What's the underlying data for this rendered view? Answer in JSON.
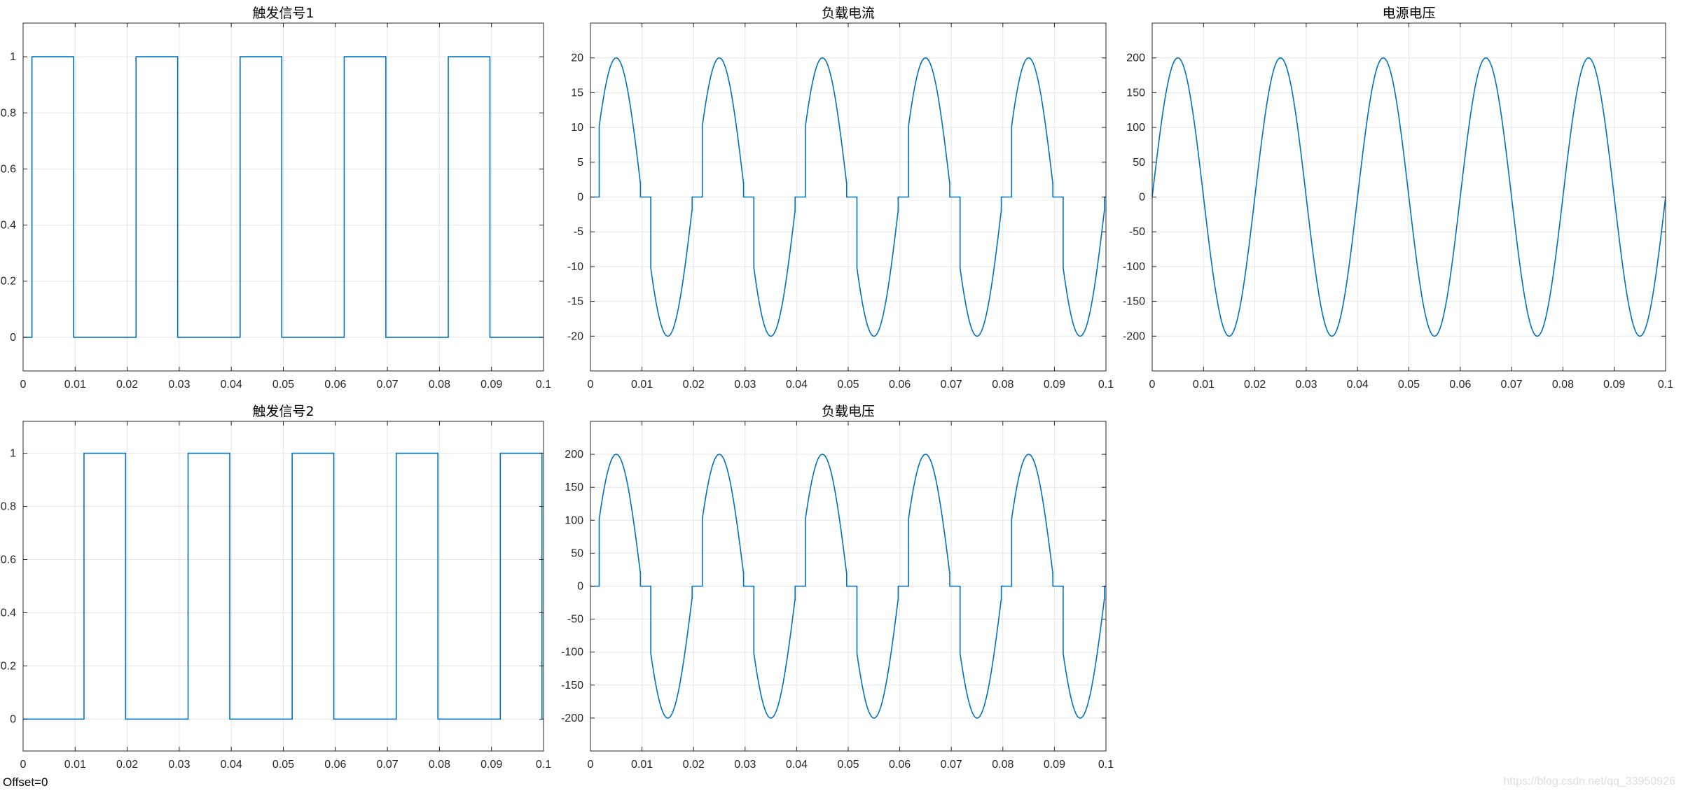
{
  "figure": {
    "offset_label": "Offset=0",
    "watermark": "https://blog.csdn.net/qq_33950926",
    "line_color": "#0072bd",
    "grid_color": "#e5e5e5",
    "grid": true
  },
  "chart_data": [
    {
      "id": "trigger1",
      "type": "line",
      "title": "触发信号1",
      "xlabel": "",
      "ylabel": "",
      "xlim": [
        0,
        0.1
      ],
      "ylim": [
        -0.12,
        1.12
      ],
      "xticks": [
        0,
        0.01,
        0.02,
        0.03,
        0.04,
        0.05,
        0.06,
        0.07,
        0.08,
        0.09,
        0.1
      ],
      "xtick_labels": [
        "0",
        "0.01",
        "0.02",
        "0.03",
        "0.04",
        "0.05",
        "0.06",
        "0.07",
        "0.08",
        "0.09",
        "0.1"
      ],
      "yticks": [
        0,
        0.2,
        0.4,
        0.6,
        0.8,
        1
      ],
      "ytick_labels": [
        "0",
        "0.2",
        "0.4",
        "0.6",
        "0.8",
        "1"
      ],
      "series": [
        {
          "kind": "pulse",
          "period": 0.02,
          "high_start": 0.0017,
          "high_end": 0.0097,
          "high": 1,
          "low": 0
        }
      ]
    },
    {
      "id": "load-current",
      "type": "line",
      "title": "负载电流",
      "xlabel": "",
      "ylabel": "",
      "xlim": [
        0,
        0.1
      ],
      "ylim": [
        -25,
        25
      ],
      "xticks": [
        0,
        0.01,
        0.02,
        0.03,
        0.04,
        0.05,
        0.06,
        0.07,
        0.08,
        0.09,
        0.1
      ],
      "xtick_labels": [
        "0",
        "0.01",
        "0.02",
        "0.03",
        "0.04",
        "0.05",
        "0.06",
        "0.07",
        "0.08",
        "0.09",
        "0.1"
      ],
      "yticks": [
        -20,
        -15,
        -10,
        -5,
        0,
        5,
        10,
        15,
        20
      ],
      "ytick_labels": [
        "-20",
        "-15",
        "-10",
        "-5",
        "0",
        "5",
        "10",
        "15",
        "20"
      ],
      "series": [
        {
          "kind": "chopped-sine",
          "amplitude": 20,
          "frequency": 50,
          "conduction_start": 0.0017,
          "conduction_end": 0.0097
        }
      ]
    },
    {
      "id": "source-voltage",
      "type": "line",
      "title": "电源电压",
      "xlabel": "",
      "ylabel": "",
      "xlim": [
        0,
        0.1
      ],
      "ylim": [
        -250,
        250
      ],
      "xticks": [
        0,
        0.01,
        0.02,
        0.03,
        0.04,
        0.05,
        0.06,
        0.07,
        0.08,
        0.09,
        0.1
      ],
      "xtick_labels": [
        "0",
        "0.01",
        "0.02",
        "0.03",
        "0.04",
        "0.05",
        "0.06",
        "0.07",
        "0.08",
        "0.09",
        "0.1"
      ],
      "yticks": [
        -200,
        -150,
        -100,
        -50,
        0,
        50,
        100,
        150,
        200
      ],
      "ytick_labels": [
        "-200",
        "-150",
        "-100",
        "-50",
        "0",
        "50",
        "100",
        "150",
        "200"
      ],
      "series": [
        {
          "kind": "sine",
          "amplitude": 200,
          "frequency": 50
        }
      ]
    },
    {
      "id": "trigger2",
      "type": "line",
      "title": "触发信号2",
      "xlabel": "",
      "ylabel": "",
      "xlim": [
        0,
        0.1
      ],
      "ylim": [
        -0.12,
        1.12
      ],
      "xticks": [
        0,
        0.01,
        0.02,
        0.03,
        0.04,
        0.05,
        0.06,
        0.07,
        0.08,
        0.09,
        0.1
      ],
      "xtick_labels": [
        "0",
        "0.01",
        "0.02",
        "0.03",
        "0.04",
        "0.05",
        "0.06",
        "0.07",
        "0.08",
        "0.09",
        "0.1"
      ],
      "yticks": [
        0,
        0.2,
        0.4,
        0.6,
        0.8,
        1
      ],
      "ytick_labels": [
        "0",
        "0.2",
        "0.4",
        "0.6",
        "0.8",
        "1"
      ],
      "series": [
        {
          "kind": "pulse",
          "period": 0.02,
          "high_start": 0.0117,
          "high_end": 0.0197,
          "high": 1,
          "low": 0
        }
      ]
    },
    {
      "id": "load-voltage",
      "type": "line",
      "title": "负载电压",
      "xlabel": "",
      "ylabel": "",
      "xlim": [
        0,
        0.1
      ],
      "ylim": [
        -250,
        250
      ],
      "xticks": [
        0,
        0.01,
        0.02,
        0.03,
        0.04,
        0.05,
        0.06,
        0.07,
        0.08,
        0.09,
        0.1
      ],
      "xtick_labels": [
        "0",
        "0.01",
        "0.02",
        "0.03",
        "0.04",
        "0.05",
        "0.06",
        "0.07",
        "0.08",
        "0.09",
        "0.1"
      ],
      "yticks": [
        -200,
        -150,
        -100,
        -50,
        0,
        50,
        100,
        150,
        200
      ],
      "ytick_labels": [
        "-200",
        "-150",
        "-100",
        "-50",
        "0",
        "50",
        "100",
        "150",
        "200"
      ],
      "series": [
        {
          "kind": "chopped-sine",
          "amplitude": 200,
          "frequency": 50,
          "conduction_start": 0.0017,
          "conduction_end": 0.0097
        }
      ]
    }
  ]
}
